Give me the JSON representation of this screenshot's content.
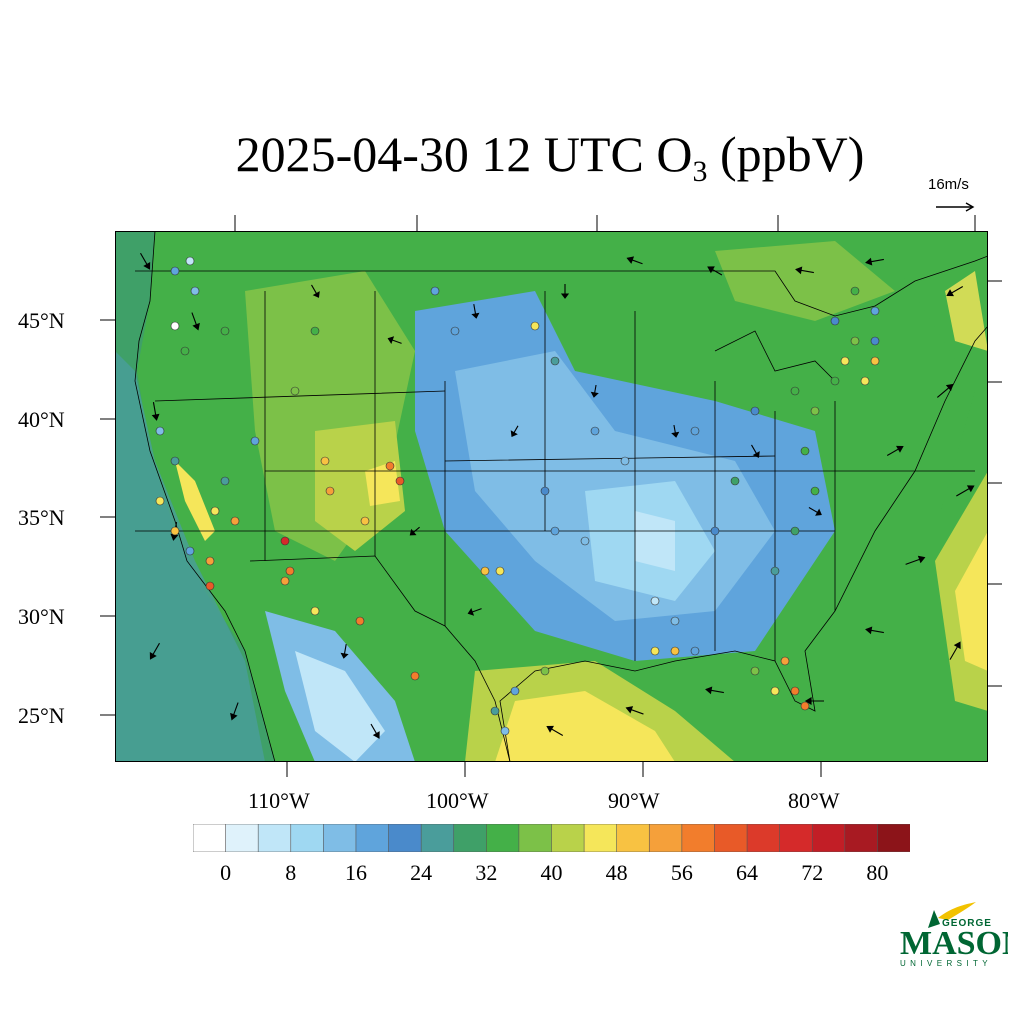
{
  "title": {
    "prefix": "2025-04-30 12 UTC O",
    "subscript": "3",
    "suffix": " (ppbV)"
  },
  "vector_reference": "16m/s",
  "map": {
    "latitude_labels": [
      "45°N",
      "40°N",
      "35°N",
      "30°N",
      "25°N"
    ],
    "longitude_labels": [
      "110°W",
      "100°W",
      "90°W",
      "80°W"
    ],
    "field": "surface ozone concentration with wind vectors and observation sites"
  },
  "colorbar": {
    "labels": [
      "0",
      "8",
      "16",
      "24",
      "32",
      "40",
      "48",
      "56",
      "64",
      "72",
      "80"
    ],
    "colors": [
      "#ffffff",
      "#dff2fb",
      "#c0e6f8",
      "#9fd8f2",
      "#7fbde6",
      "#5fa4dc",
      "#4a8acb",
      "#4a9d9b",
      "#3fa068",
      "#44b048",
      "#7cc148",
      "#b9d24a",
      "#f5e65a",
      "#f8c242",
      "#f5a03a",
      "#f27d2c",
      "#e85a28",
      "#dc3a2a",
      "#d52a2a",
      "#c21e26",
      "#a81a22",
      "#8c1419"
    ]
  },
  "logo": {
    "top": "GEORGE",
    "main": "MASON",
    "bottom": "UNIVERSITY",
    "color": "#006633",
    "accent": "#f2c200"
  }
}
